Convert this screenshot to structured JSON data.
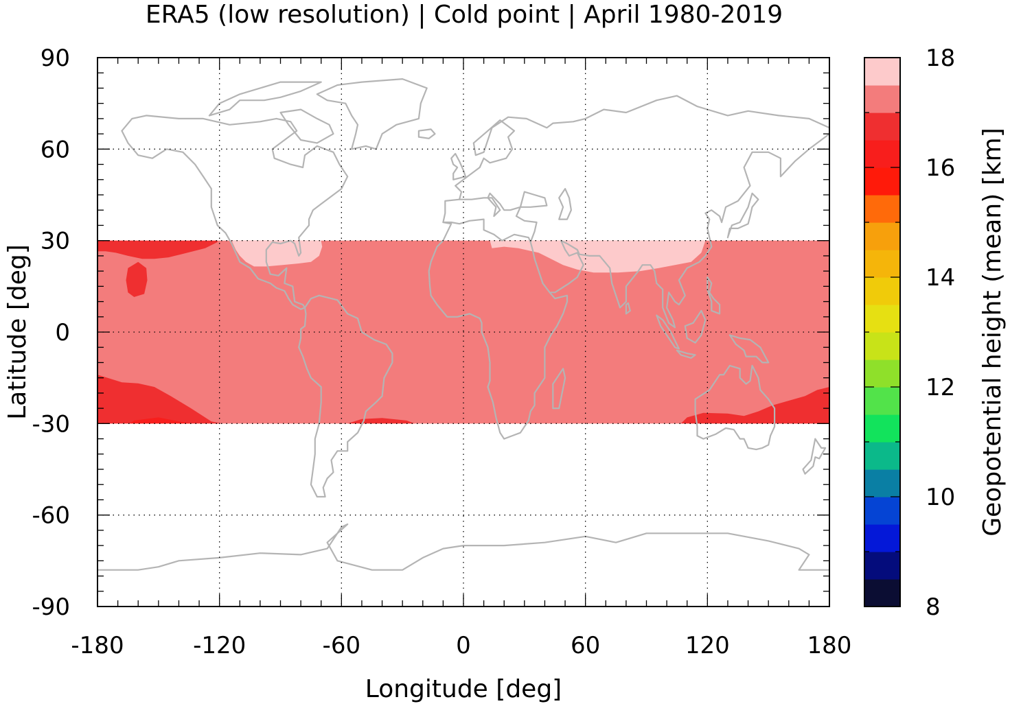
{
  "title": "ERA5 (low resolution) | Cold point | April 1980-2019",
  "chart_data": {
    "type": "heatmap",
    "title": "ERA5 (low resolution) | Cold point | April 1980-2019",
    "xlabel": "Longitude [deg]",
    "ylabel": "Latitude [deg]",
    "xlim": [
      -180,
      180
    ],
    "ylim": [
      -90,
      90
    ],
    "x_ticks": [
      "-180",
      "-120",
      "-60",
      "0",
      "60",
      "120",
      "180"
    ],
    "y_ticks": [
      "90",
      "60",
      "30",
      "0",
      "-30",
      "-60",
      "-90"
    ],
    "grid": true,
    "colorbar": {
      "label": "Geopotential height (mean) [km]",
      "range": [
        8,
        18
      ],
      "step": 0.5,
      "ticks": [
        "8",
        "10",
        "12",
        "14",
        "16",
        "18"
      ],
      "colors": [
        "#0b0d33",
        "#040c7c",
        "#0418d8",
        "#0544d4",
        "#0a7fa4",
        "#0bb98a",
        "#12e35c",
        "#52e34a",
        "#8fe02a",
        "#c8e318",
        "#e6e012",
        "#f0cb0a",
        "#f5b50a",
        "#f7a00c",
        "#ff6a0a",
        "#ff1a0a",
        "#f81e1c",
        "#ef2f30",
        "#f37c7c",
        "#fdcacb"
      ]
    },
    "data_extent": {
      "lat": [
        -30,
        30
      ],
      "lon": [
        -180,
        180
      ]
    },
    "regions": [
      {
        "name": "background",
        "value_km": 17.25
      },
      {
        "name": "north-pacific-high",
        "value_km": 16.75
      },
      {
        "name": "hawaii-patch",
        "value_km": 16.75
      },
      {
        "name": "mexico-caribbean",
        "value_km": 17.75
      },
      {
        "name": "north-africa-asia",
        "value_km": 17.75
      },
      {
        "name": "south-pacific",
        "value_km": 16.75
      },
      {
        "name": "south-pacific-core",
        "value_km": 16.25
      },
      {
        "name": "south-atlantic",
        "value_km": 16.75
      },
      {
        "name": "australia",
        "value_km": 16.75
      }
    ],
    "coastline_color": "#b4b4b4"
  }
}
